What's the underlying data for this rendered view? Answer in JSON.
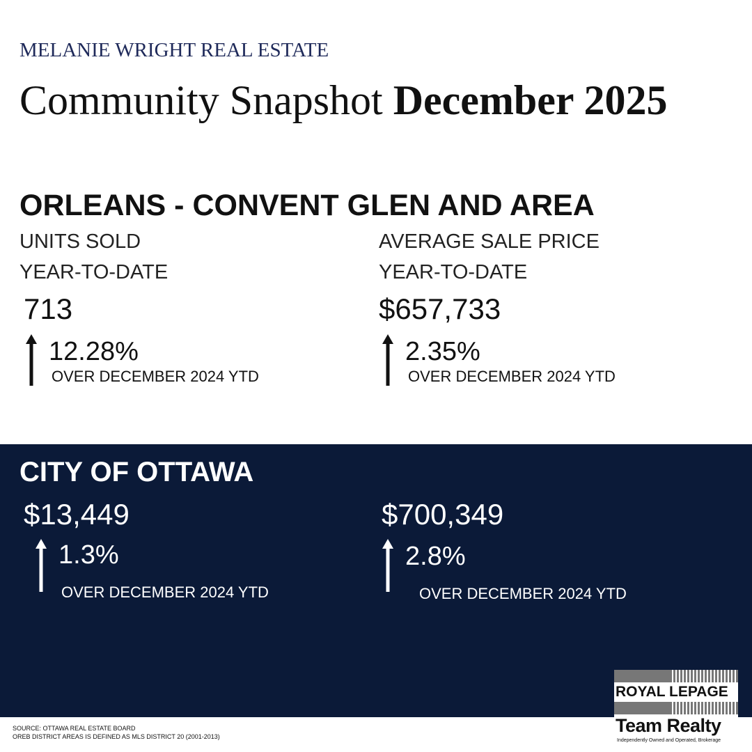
{
  "header": {
    "brand": "MELANIE WRIGHT REAL ESTATE",
    "title": "Community Snapshot",
    "title_bold": "December 2025"
  },
  "area": {
    "name": "ORLEANS - CONVENT GLEN AND AREA",
    "stats": [
      {
        "label": "UNITS SOLD",
        "sublabel": "YEAR-TO-DATE",
        "value": "713",
        "change": "12.28%",
        "note": "OVER DECEMBER 2024 YTD"
      },
      {
        "label": "AVERAGE SALE PRICE",
        "sublabel": "YEAR-TO-DATE",
        "value": "$657,733",
        "change": "2.35%",
        "note": "OVER DECEMBER 2024 YTD"
      }
    ]
  },
  "city": {
    "name": "CITY OF OTTAWA",
    "stats": [
      {
        "value": "$13,449",
        "change": "1.3%",
        "note": "OVER DECEMBER 2024 YTD"
      },
      {
        "value": "$700,349",
        "change": "2.8%",
        "note": "OVER DECEMBER 2024 YTD"
      }
    ]
  },
  "footer": {
    "source": "SOURCE: OTTAWA REAL ESTATE BOARD",
    "definition": "OREB DISTRICT AREAS IS DEFINED AS MLS DISTRICT 20 (2001-2013)"
  },
  "logo": {
    "brand": "ROYAL LEPAGE",
    "office": "Team Realty",
    "tagline": "Independently Owned and Operated, Brokerage"
  }
}
